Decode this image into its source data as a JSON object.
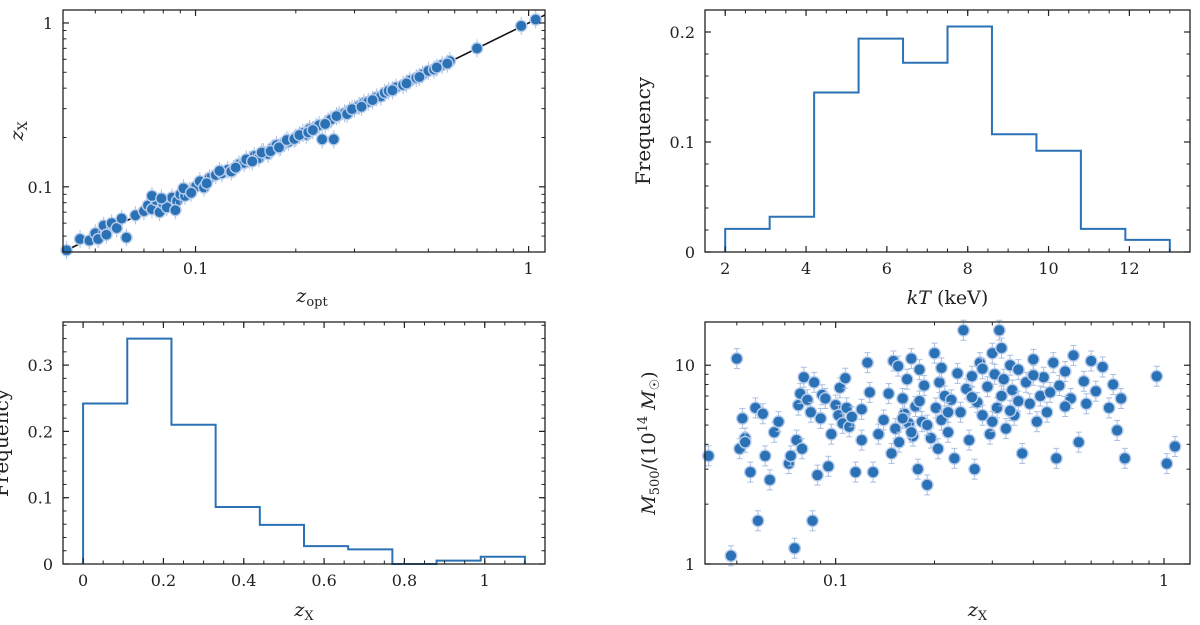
{
  "chart_data": [
    {
      "id": "p1",
      "type": "scatter",
      "title": "",
      "xlabel": "z_opt",
      "ylabel": "z_X",
      "xscale": "log",
      "yscale": "log",
      "xlim": [
        0.04,
        1.12
      ],
      "ylim": [
        0.04,
        1.2
      ],
      "xticks": [
        0.1,
        1
      ],
      "xtick_labels": [
        "0.1",
        "1"
      ],
      "yticks": [
        0.1,
        1
      ],
      "ytick_labels": [
        "0.1",
        "1"
      ],
      "reference_line": "y = x",
      "points": [
        [
          0.041,
          0.041
        ],
        [
          0.045,
          0.048
        ],
        [
          0.048,
          0.047
        ],
        [
          0.05,
          0.052
        ],
        [
          0.051,
          0.048
        ],
        [
          0.053,
          0.058
        ],
        [
          0.054,
          0.051
        ],
        [
          0.056,
          0.06
        ],
        [
          0.058,
          0.056
        ],
        [
          0.06,
          0.064
        ],
        [
          0.062,
          0.049
        ],
        [
          0.066,
          0.067
        ],
        [
          0.07,
          0.071
        ],
        [
          0.072,
          0.077
        ],
        [
          0.074,
          0.073
        ],
        [
          0.076,
          0.083
        ],
        [
          0.078,
          0.07
        ],
        [
          0.08,
          0.079
        ],
        [
          0.082,
          0.075
        ],
        [
          0.085,
          0.086
        ],
        [
          0.088,
          0.082
        ],
        [
          0.09,
          0.09
        ],
        [
          0.093,
          0.088
        ],
        [
          0.096,
          0.094
        ],
        [
          0.1,
          0.1
        ],
        [
          0.103,
          0.108
        ],
        [
          0.106,
          0.099
        ],
        [
          0.11,
          0.113
        ],
        [
          0.115,
          0.118
        ],
        [
          0.12,
          0.121
        ],
        [
          0.125,
          0.127
        ],
        [
          0.13,
          0.128
        ],
        [
          0.135,
          0.137
        ],
        [
          0.14,
          0.14
        ],
        [
          0.145,
          0.146
        ],
        [
          0.15,
          0.154
        ],
        [
          0.155,
          0.15
        ],
        [
          0.16,
          0.163
        ],
        [
          0.165,
          0.159
        ],
        [
          0.17,
          0.172
        ],
        [
          0.175,
          0.18
        ],
        [
          0.18,
          0.176
        ],
        [
          0.185,
          0.186
        ],
        [
          0.19,
          0.188
        ],
        [
          0.2,
          0.2
        ],
        [
          0.21,
          0.213
        ],
        [
          0.215,
          0.208
        ],
        [
          0.22,
          0.226
        ],
        [
          0.23,
          0.232
        ],
        [
          0.235,
          0.238
        ],
        [
          0.24,
          0.195
        ],
        [
          0.25,
          0.25
        ],
        [
          0.255,
          0.258
        ],
        [
          0.26,
          0.195
        ],
        [
          0.27,
          0.275
        ],
        [
          0.28,
          0.281
        ],
        [
          0.29,
          0.292
        ],
        [
          0.3,
          0.3
        ],
        [
          0.31,
          0.312
        ],
        [
          0.32,
          0.325
        ],
        [
          0.33,
          0.33
        ],
        [
          0.35,
          0.352
        ],
        [
          0.36,
          0.356
        ],
        [
          0.37,
          0.375
        ],
        [
          0.38,
          0.385
        ],
        [
          0.4,
          0.404
        ],
        [
          0.42,
          0.418
        ],
        [
          0.44,
          0.445
        ],
        [
          0.46,
          0.462
        ],
        [
          0.48,
          0.485
        ],
        [
          0.5,
          0.51
        ],
        [
          0.52,
          0.52
        ],
        [
          0.55,
          0.555
        ],
        [
          0.58,
          0.585
        ],
        [
          0.7,
          0.7
        ],
        [
          0.95,
          0.96
        ],
        [
          1.05,
          1.05
        ],
        [
          0.074,
          0.088
        ],
        [
          0.079,
          0.085
        ],
        [
          0.087,
          0.072
        ],
        [
          0.092,
          0.098
        ],
        [
          0.097,
          0.092
        ],
        [
          0.108,
          0.105
        ],
        [
          0.118,
          0.125
        ],
        [
          0.128,
          0.124
        ],
        [
          0.132,
          0.131
        ],
        [
          0.142,
          0.147
        ],
        [
          0.148,
          0.143
        ],
        [
          0.158,
          0.162
        ],
        [
          0.168,
          0.165
        ],
        [
          0.178,
          0.174
        ],
        [
          0.188,
          0.193
        ],
        [
          0.198,
          0.196
        ],
        [
          0.205,
          0.207
        ],
        [
          0.218,
          0.215
        ],
        [
          0.225,
          0.222
        ],
        [
          0.245,
          0.242
        ],
        [
          0.265,
          0.27
        ],
        [
          0.285,
          0.278
        ],
        [
          0.295,
          0.298
        ],
        [
          0.315,
          0.308
        ],
        [
          0.34,
          0.338
        ],
        [
          0.39,
          0.388
        ],
        [
          0.43,
          0.428
        ],
        [
          0.47,
          0.468
        ],
        [
          0.53,
          0.535
        ],
        [
          0.57,
          0.565
        ]
      ]
    },
    {
      "id": "p2",
      "type": "histogram",
      "xlabel": "kT (keV)",
      "ylabel": "Frequency",
      "xlim": [
        1.5,
        13.5
      ],
      "ylim": [
        0,
        0.22
      ],
      "xticks": [
        2,
        4,
        6,
        8,
        10,
        12
      ],
      "xtick_labels": [
        "2",
        "4",
        "6",
        "8",
        "10",
        "12"
      ],
      "yticks": [
        0,
        0.1,
        0.2
      ],
      "ytick_labels": [
        "0",
        "0.1",
        "0.2"
      ],
      "bin_edges": [
        2.0,
        3.1,
        4.2,
        5.3,
        6.4,
        7.5,
        8.6,
        9.7,
        10.8,
        11.9,
        13.0
      ],
      "values": [
        0.021,
        0.032,
        0.145,
        0.194,
        0.172,
        0.205,
        0.107,
        0.092,
        0.021,
        0.011
      ]
    },
    {
      "id": "p3",
      "type": "histogram",
      "xlabel": "z_X",
      "ylabel": "Frequency",
      "xlim": [
        -0.05,
        1.15
      ],
      "ylim": [
        0,
        0.365
      ],
      "xticks": [
        0,
        0.2,
        0.4,
        0.6,
        0.8,
        1
      ],
      "xtick_labels": [
        "0",
        "0.2",
        "0.4",
        "0.6",
        "0.8",
        "1"
      ],
      "yticks": [
        0,
        0.1,
        0.2,
        0.3
      ],
      "ytick_labels": [
        "0",
        "0.1",
        "0.2",
        "0.3"
      ],
      "bin_edges": [
        0.0,
        0.11,
        0.22,
        0.33,
        0.44,
        0.55,
        0.66,
        0.77,
        0.88,
        0.99,
        1.1
      ],
      "values": [
        0.242,
        0.34,
        0.21,
        0.086,
        0.059,
        0.027,
        0.022,
        0.0,
        0.005,
        0.011
      ]
    },
    {
      "id": "p4",
      "type": "scatter",
      "xlabel": "z_X",
      "ylabel": "M500/(10^14 M☉)",
      "xscale": "log",
      "yscale": "log",
      "xlim": [
        0.04,
        1.2
      ],
      "ylim": [
        1,
        16.5
      ],
      "xticks": [
        0.1,
        1
      ],
      "xtick_labels": [
        "0.1",
        "1"
      ],
      "yticks": [
        1,
        10
      ],
      "ytick_labels": [
        "1",
        "10"
      ],
      "points": [
        [
          0.041,
          3.5
        ],
        [
          0.048,
          1.1
        ],
        [
          0.05,
          10.8
        ],
        [
          0.051,
          3.8
        ],
        [
          0.052,
          5.4
        ],
        [
          0.053,
          4.3
        ],
        [
          0.053,
          4.1
        ],
        [
          0.055,
          2.9
        ],
        [
          0.057,
          6.1
        ],
        [
          0.058,
          1.65
        ],
        [
          0.06,
          5.7
        ],
        [
          0.061,
          3.5
        ],
        [
          0.063,
          2.65
        ],
        [
          0.065,
          4.6
        ],
        [
          0.067,
          5.2
        ],
        [
          0.072,
          3.2
        ],
        [
          0.073,
          3.5
        ],
        [
          0.075,
          1.2
        ],
        [
          0.076,
          4.2
        ],
        [
          0.077,
          6.3
        ],
        [
          0.078,
          7.2
        ],
        [
          0.079,
          3.8
        ],
        [
          0.08,
          8.7
        ],
        [
          0.082,
          6.7
        ],
        [
          0.084,
          5.8
        ],
        [
          0.085,
          1.65
        ],
        [
          0.086,
          8.2
        ],
        [
          0.088,
          2.8
        ],
        [
          0.09,
          5.4
        ],
        [
          0.091,
          7.1
        ],
        [
          0.093,
          6.8
        ],
        [
          0.095,
          3.1
        ],
        [
          0.097,
          4.5
        ],
        [
          0.1,
          6.3
        ],
        [
          0.102,
          5.6
        ],
        [
          0.103,
          7.7
        ],
        [
          0.105,
          5.1
        ],
        [
          0.107,
          8.6
        ],
        [
          0.108,
          6.1
        ],
        [
          0.11,
          4.9
        ],
        [
          0.112,
          5.5
        ],
        [
          0.115,
          2.9
        ],
        [
          0.12,
          4.2
        ],
        [
          0.12,
          6.0
        ],
        [
          0.125,
          10.3
        ],
        [
          0.127,
          7.3
        ],
        [
          0.13,
          2.9
        ],
        [
          0.135,
          4.5
        ],
        [
          0.14,
          5.3
        ],
        [
          0.145,
          7.2
        ],
        [
          0.148,
          3.6
        ],
        [
          0.15,
          10.5
        ],
        [
          0.152,
          4.8
        ],
        [
          0.155,
          9.9
        ],
        [
          0.156,
          4.1
        ],
        [
          0.16,
          6.8
        ],
        [
          0.162,
          5.7
        ],
        [
          0.165,
          8.5
        ],
        [
          0.167,
          5.1
        ],
        [
          0.17,
          10.8
        ],
        [
          0.172,
          4.4
        ],
        [
          0.175,
          6.2
        ],
        [
          0.178,
          3.0
        ],
        [
          0.18,
          9.5
        ],
        [
          0.183,
          5.2
        ],
        [
          0.186,
          7.9
        ],
        [
          0.19,
          2.5
        ],
        [
          0.195,
          4.3
        ],
        [
          0.2,
          11.5
        ],
        [
          0.202,
          6.1
        ],
        [
          0.205,
          3.8
        ],
        [
          0.207,
          8.2
        ],
        [
          0.21,
          5.3
        ],
        [
          0.215,
          7.0
        ],
        [
          0.22,
          4.6
        ],
        [
          0.225,
          6.7
        ],
        [
          0.23,
          3.4
        ],
        [
          0.235,
          9.1
        ],
        [
          0.24,
          5.8
        ],
        [
          0.245,
          15.0
        ],
        [
          0.25,
          7.6
        ],
        [
          0.255,
          4.2
        ],
        [
          0.26,
          8.8
        ],
        [
          0.265,
          3.0
        ],
        [
          0.27,
          6.5
        ],
        [
          0.275,
          10.3
        ],
        [
          0.28,
          5.6
        ],
        [
          0.29,
          7.8
        ],
        [
          0.295,
          4.5
        ],
        [
          0.3,
          11.5
        ],
        [
          0.305,
          9.0
        ],
        [
          0.31,
          6.1
        ],
        [
          0.315,
          15.0
        ],
        [
          0.32,
          12.2
        ],
        [
          0.325,
          8.5
        ],
        [
          0.33,
          4.8
        ],
        [
          0.34,
          10.0
        ],
        [
          0.345,
          7.5
        ],
        [
          0.35,
          5.6
        ],
        [
          0.36,
          9.5
        ],
        [
          0.37,
          3.6
        ],
        [
          0.38,
          8.2
        ],
        [
          0.39,
          6.4
        ],
        [
          0.4,
          10.7
        ],
        [
          0.41,
          5.2
        ],
        [
          0.42,
          7.0
        ],
        [
          0.43,
          8.7
        ],
        [
          0.44,
          5.8
        ],
        [
          0.46,
          10.3
        ],
        [
          0.47,
          3.4
        ],
        [
          0.48,
          7.9
        ],
        [
          0.5,
          9.3
        ],
        [
          0.52,
          6.8
        ],
        [
          0.53,
          11.2
        ],
        [
          0.55,
          4.1
        ],
        [
          0.57,
          8.3
        ],
        [
          0.58,
          6.4
        ],
        [
          0.6,
          10.5
        ],
        [
          0.62,
          7.4
        ],
        [
          0.65,
          9.8
        ],
        [
          0.68,
          6.1
        ],
        [
          0.7,
          8.0
        ],
        [
          0.72,
          4.7
        ],
        [
          0.74,
          6.8
        ],
        [
          0.76,
          3.4
        ],
        [
          0.95,
          8.8
        ],
        [
          1.02,
          3.2
        ],
        [
          1.08,
          3.9
        ],
        [
          0.16,
          5.4
        ],
        [
          0.17,
          4.6
        ],
        [
          0.18,
          6.6
        ],
        [
          0.19,
          5.0
        ],
        [
          0.21,
          9.7
        ],
        [
          0.22,
          5.8
        ],
        [
          0.26,
          6.9
        ],
        [
          0.28,
          9.6
        ],
        [
          0.3,
          5.2
        ],
        [
          0.32,
          7.0
        ],
        [
          0.34,
          5.9
        ],
        [
          0.36,
          6.6
        ],
        [
          0.4,
          8.9
        ],
        [
          0.45,
          7.3
        ],
        [
          0.5,
          6.2
        ]
      ]
    }
  ]
}
